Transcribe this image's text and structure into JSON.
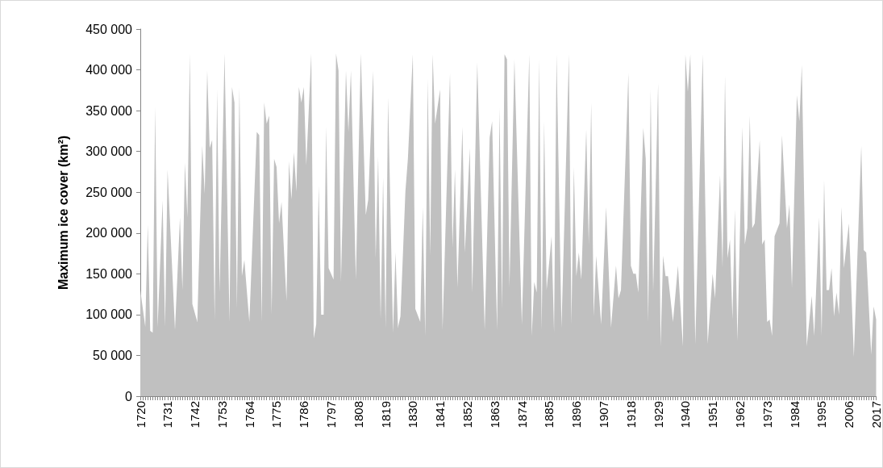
{
  "chart_data": {
    "type": "area",
    "ylabel": "Maximum ice cover (km²)",
    "color": "#c0c0c0",
    "x": [
      1720,
      1722,
      1723,
      1724,
      1725,
      1726,
      1727,
      1729,
      1730,
      1731,
      1734,
      1736,
      1737,
      1738,
      1739,
      1740,
      1741,
      1743,
      1745,
      1746,
      1747,
      1748,
      1749,
      1750,
      1751,
      1752,
      1754,
      1756,
      1757,
      1758,
      1759,
      1760,
      1761,
      1762,
      1764,
      1767,
      1768,
      1769,
      1770,
      1771,
      1772,
      1773,
      1774,
      1775,
      1776,
      1777,
      1779,
      1780,
      1781,
      1782,
      1783,
      1784,
      1785,
      1786,
      1787,
      1789,
      1790,
      1791,
      1792,
      1793,
      1794,
      1795,
      1796,
      1798,
      1799,
      1800,
      1801,
      1803,
      1804,
      1805,
      1807,
      1809,
      1811,
      1812,
      1814,
      1815,
      1816,
      1817,
      1818,
      1819,
      1820,
      1822,
      1823,
      1824,
      1825,
      1827,
      1828,
      1830,
      1831,
      1833,
      1834,
      1835,
      1836,
      1837,
      1838,
      1839,
      1841,
      1842,
      1845,
      1846,
      1847,
      1848,
      1850,
      1851,
      1853,
      1854,
      1856,
      1859,
      1861,
      1862,
      1864,
      1865,
      1866,
      1867,
      1868,
      1869,
      1871,
      1874,
      1877,
      1878,
      1879,
      1880,
      1881,
      1882,
      1883,
      1884,
      1886,
      1887,
      1888,
      1890,
      1893,
      1894,
      1895,
      1896,
      1897,
      1898,
      1900,
      1901,
      1902,
      1903,
      1904,
      1906,
      1908,
      1910,
      1912,
      1913,
      1914,
      1917,
      1918,
      1919,
      1920,
      1921,
      1923,
      1924,
      1925,
      1926,
      1927,
      1929,
      1930,
      1931,
      1932,
      1933,
      1935,
      1937,
      1939,
      1940,
      1941,
      1942,
      1944,
      1947,
      1949,
      1951,
      1952,
      1954,
      1955,
      1956,
      1957,
      1958,
      1959,
      1960,
      1961,
      1963,
      1964,
      1965,
      1966,
      1967,
      1968,
      1970,
      1971,
      1972,
      1973,
      1974,
      1975,
      1976,
      1978,
      1979,
      1981,
      1982,
      1983,
      1985,
      1986,
      1987,
      1989,
      1991,
      1992,
      1994,
      1995,
      1996,
      1997,
      1998,
      1999,
      2000,
      2001,
      2002,
      2003,
      2004,
      2006,
      2008,
      2011,
      2012,
      2013,
      2015,
      2016,
      2017
    ],
    "values": [
      130000,
      85000,
      210000,
      80000,
      78000,
      355000,
      85000,
      240000,
      85000,
      278000,
      81000,
      219000,
      130000,
      286000,
      219000,
      420000,
      113000,
      91000,
      307000,
      248000,
      399000,
      304000,
      314000,
      94000,
      376000,
      127000,
      420000,
      91000,
      379000,
      360000,
      107000,
      379000,
      147000,
      167000,
      91000,
      324000,
      320000,
      91000,
      360000,
      334000,
      344000,
      100000,
      291000,
      281000,
      212000,
      238000,
      117000,
      288000,
      241000,
      299000,
      251000,
      379000,
      360000,
      379000,
      283000,
      420000,
      71000,
      88000,
      258000,
      100000,
      100000,
      330000,
      157000,
      143000,
      420000,
      399000,
      140000,
      399000,
      324000,
      399000,
      143000,
      420000,
      222000,
      241000,
      399000,
      169000,
      294000,
      94000,
      268000,
      84000,
      366000,
      78000,
      176000,
      84000,
      98000,
      251000,
      291000,
      419000,
      107000,
      91000,
      232000,
      74000,
      389000,
      172000,
      419000,
      334000,
      376000,
      81000,
      396000,
      182000,
      278000,
      133000,
      330000,
      176000,
      304000,
      127000,
      409000,
      81000,
      317000,
      337000,
      81000,
      354000,
      107000,
      419000,
      413000,
      133000,
      413000,
      88000,
      419000,
      74000,
      140000,
      127000,
      413000,
      81000,
      337000,
      130000,
      196000,
      78000,
      419000,
      84000,
      419000,
      88000,
      281000,
      147000,
      176000,
      143000,
      327000,
      186000,
      360000,
      98000,
      172000,
      88000,
      232000,
      84000,
      160000,
      120000,
      130000,
      396000,
      160000,
      150000,
      150000,
      127000,
      329000,
      291000,
      91000,
      376000,
      127000,
      384000,
      61000,
      172000,
      147000,
      147000,
      91000,
      160000,
      61000,
      419000,
      373000,
      419000,
      64000,
      419000,
      64000,
      150000,
      120000,
      271000,
      157000,
      393000,
      169000,
      192000,
      94000,
      229000,
      68000,
      330000,
      186000,
      206000,
      344000,
      206000,
      212000,
      314000,
      186000,
      192000,
      91000,
      94000,
      74000,
      196000,
      212000,
      320000,
      206000,
      235000,
      133000,
      369000,
      337000,
      406000,
      61000,
      123000,
      74000,
      219000,
      74000,
      265000,
      130000,
      130000,
      157000,
      98000,
      127000,
      100000,
      232000,
      157000,
      212000,
      48000,
      307000,
      179000,
      176000,
      51000,
      110000,
      94000
    ],
    "xlim": [
      1720,
      2017
    ],
    "xticks": [
      1720,
      1731,
      1742,
      1753,
      1764,
      1775,
      1786,
      1797,
      1808,
      1819,
      1830,
      1841,
      1852,
      1863,
      1874,
      1885,
      1896,
      1907,
      1918,
      1929,
      1940,
      1951,
      1962,
      1973,
      1984,
      1995,
      2006,
      2017
    ],
    "ylim": [
      0,
      450000
    ],
    "yticks": [
      {
        "value": 0,
        "label": "0"
      },
      {
        "value": 50000,
        "label": "50 000"
      },
      {
        "value": 100000,
        "label": "100 000"
      },
      {
        "value": 150000,
        "label": "150 000"
      },
      {
        "value": 200000,
        "label": "200 000"
      },
      {
        "value": 250000,
        "label": "250 000"
      },
      {
        "value": 300000,
        "label": "300 000"
      },
      {
        "value": 350000,
        "label": "350 000"
      },
      {
        "value": 400000,
        "label": "400 000"
      },
      {
        "value": 450000,
        "label": "450 000"
      }
    ],
    "marker": "none"
  }
}
